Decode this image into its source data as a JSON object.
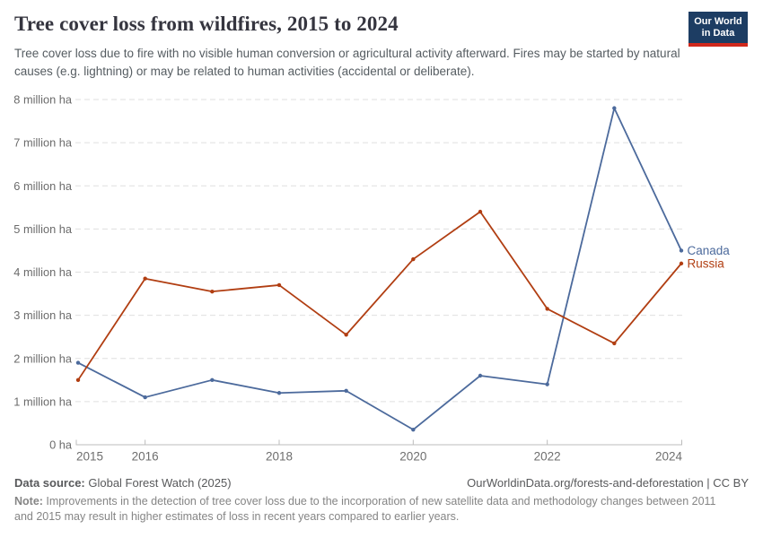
{
  "header": {
    "title": "Tree cover loss from wildfires, 2015 to 2024",
    "subtitle": "Tree cover loss due to fire with no visible human conversion or agricultural activity afterward. Fires may be started by natural causes (e.g. lightning) or may be related to human activities (accidental or deliberate).",
    "logo": {
      "line1": "Our World",
      "line2": "in Data",
      "bg_color": "#1d3d63",
      "bar_color": "#d0281c"
    }
  },
  "chart_data": {
    "type": "line",
    "title": "Tree cover loss from wildfires, 2015 to 2024",
    "x": [
      2015,
      2016,
      2017,
      2018,
      2019,
      2020,
      2021,
      2022,
      2023,
      2024
    ],
    "series": [
      {
        "name": "Canada",
        "color": "#4C6A9C",
        "values": [
          1.9,
          1.1,
          1.5,
          1.2,
          1.25,
          0.35,
          1.6,
          1.4,
          7.8,
          4.5
        ]
      },
      {
        "name": "Russia",
        "color": "#B13E12",
        "values": [
          1.5,
          3.85,
          3.55,
          3.7,
          2.55,
          4.3,
          5.4,
          3.15,
          2.35,
          4.2
        ]
      }
    ],
    "unit": "million ha",
    "ylim": [
      0,
      8
    ],
    "y_tick_labels": [
      "0 ha",
      "1 million ha",
      "2 million ha",
      "3 million ha",
      "4 million ha",
      "5 million ha",
      "6 million ha",
      "7 million ha",
      "8 million ha"
    ],
    "x_tick_labels": [
      "2015",
      "2016",
      "2018",
      "2020",
      "2022",
      "2024"
    ],
    "grid": "horizontal-dashed",
    "legend_position": "end-of-line"
  },
  "footer": {
    "datasource_label": "Data source:",
    "datasource_value": " Global Forest Watch (2025)",
    "citation": "OurWorldinData.org/forests-and-deforestation | CC BY",
    "note_label": "Note:",
    "note_value": " Improvements in the detection of tree cover loss due to the incorporation of new satellite data and methodology changes between 2011 and 2015 may result in higher estimates of loss in recent years compared to earlier years."
  }
}
